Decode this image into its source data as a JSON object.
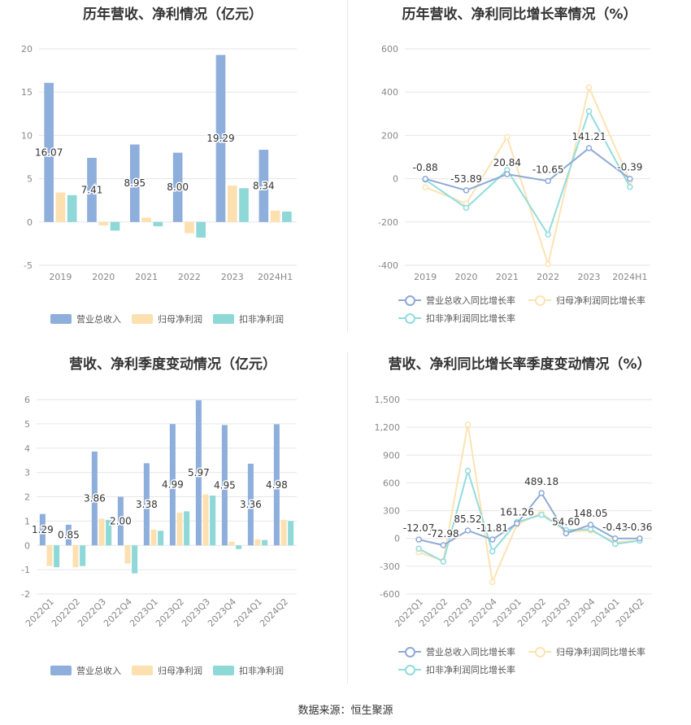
{
  "colors": {
    "revenue": "#8eaedc",
    "net_profit": "#fde0b0",
    "deducted_profit": "#8ed8d8",
    "revenue_line": "#8eaad6",
    "net_profit_line": "#fde3b3",
    "deducted_profit_line": "#92dcdc"
  },
  "source": "数据来源：恒生聚源",
  "chart_data": [
    {
      "id": "annual_bar",
      "type": "bar",
      "title": "历年营收、净利情况（亿元）",
      "categories": [
        "2019",
        "2020",
        "2021",
        "2022",
        "2023",
        "2024H1"
      ],
      "ylim": [
        -5,
        20
      ],
      "yticks": [
        -5,
        0,
        5,
        10,
        15,
        20
      ],
      "series": [
        {
          "name": "营业总收入",
          "values": [
            16.07,
            7.41,
            8.95,
            8.0,
            19.29,
            8.34
          ]
        },
        {
          "name": "归母净利润",
          "values": [
            3.4,
            -0.4,
            0.5,
            -1.3,
            4.2,
            1.3
          ]
        },
        {
          "name": "扣非净利润",
          "values": [
            3.1,
            -1.0,
            -0.5,
            -1.8,
            3.9,
            1.2
          ]
        }
      ],
      "data_labels": [
        "16.07",
        "7.41",
        "8.95",
        "8.00",
        "19.29",
        "8.34"
      ],
      "legend": "bottom"
    },
    {
      "id": "annual_line",
      "type": "line",
      "title": "历年营收、净利同比增长率情况（%）",
      "categories": [
        "2019",
        "2020",
        "2021",
        "2022",
        "2023",
        "2024H1"
      ],
      "ylim": [
        -400,
        600
      ],
      "yticks": [
        -400,
        -200,
        0,
        200,
        400,
        600
      ],
      "series": [
        {
          "name": "营业总收入同比增长率",
          "values": [
            -0.88,
            -53.89,
            20.84,
            -10.65,
            141.21,
            -0.39
          ]
        },
        {
          "name": "归母净利润同比增长率",
          "values": [
            -40,
            -115,
            192,
            -395,
            422,
            -10
          ]
        },
        {
          "name": "扣非净利润同比增长率",
          "values": [
            -5,
            -135,
            40,
            -258,
            312,
            -38
          ]
        }
      ],
      "data_labels": [
        "-0.88",
        "-53.89",
        "20.84",
        "-10.65",
        "141.21",
        "-0.39"
      ],
      "legend": "bottom"
    },
    {
      "id": "quarter_bar",
      "type": "bar",
      "title": "营收、净利季度变动情况（亿元）",
      "categories": [
        "2022Q1",
        "2022Q2",
        "2022Q3",
        "2022Q4",
        "2023Q1",
        "2023Q2",
        "2023Q3",
        "2023Q4",
        "2024Q1",
        "2024Q2"
      ],
      "ylim": [
        -2,
        6
      ],
      "yticks": [
        -2,
        -1,
        0,
        1,
        2,
        3,
        4,
        5,
        6
      ],
      "series": [
        {
          "name": "营业总收入",
          "values": [
            1.29,
            0.85,
            3.86,
            2.0,
            3.38,
            4.99,
            5.97,
            4.95,
            3.36,
            4.98
          ]
        },
        {
          "name": "归母净利润",
          "values": [
            -0.85,
            -0.9,
            1.1,
            -0.75,
            0.65,
            1.35,
            2.1,
            0.15,
            0.25,
            1.05
          ]
        },
        {
          "name": "扣非净利润",
          "values": [
            -0.9,
            -0.85,
            1.05,
            -1.15,
            0.6,
            1.4,
            2.05,
            -0.15,
            0.22,
            1.0
          ]
        }
      ],
      "data_labels": [
        "1.29",
        "0.85",
        "3.86",
        "2.00",
        "3.38",
        "4.99",
        "5.97",
        "4.95",
        "3.36",
        "4.98"
      ],
      "legend": "bottom"
    },
    {
      "id": "quarter_line",
      "type": "line",
      "title": "营收、净利同比增长率季度变动情况（%）",
      "categories": [
        "2022Q1",
        "2022Q2",
        "2022Q3",
        "2022Q4",
        "2023Q1",
        "2023Q2",
        "2023Q3",
        "2023Q4",
        "2024Q1",
        "2024Q2"
      ],
      "ylim": [
        -600,
        1500
      ],
      "yticks": [
        -600,
        -300,
        0,
        300,
        600,
        900,
        1200,
        1500
      ],
      "ytick_labels": [
        "-600",
        "-300",
        "0",
        "300",
        "600",
        "900",
        "1,200",
        "1,500"
      ],
      "series": [
        {
          "name": "营业总收入同比增长率",
          "values": [
            -12.07,
            -72.98,
            85.52,
            -11.81,
            161.26,
            489.18,
            54.6,
            148.05,
            -0.43,
            -0.36
          ]
        },
        {
          "name": "归母净利润同比增长率",
          "values": [
            -150,
            -240,
            1230,
            -470,
            150,
            275,
            70,
            85,
            -40,
            -20
          ]
        },
        {
          "name": "扣非净利润同比增长率",
          "values": [
            -110,
            -250,
            730,
            -140,
            175,
            255,
            90,
            100,
            -60,
            -25
          ]
        }
      ],
      "data_labels": [
        "-12.07",
        "-72.98",
        "85.52",
        "-11.81",
        "161.26",
        "489.18",
        "54.60",
        "148.05",
        "-0.43",
        "-0.36"
      ],
      "legend": "bottom"
    }
  ]
}
